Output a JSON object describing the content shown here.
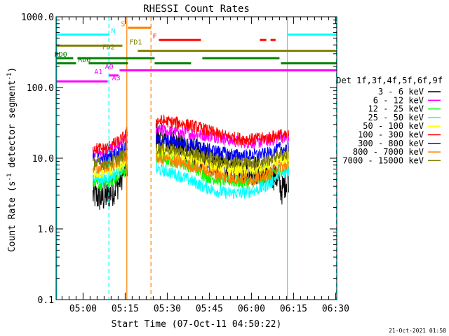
{
  "chart_data": {
    "type": "line",
    "title": "RHESSI Count Rates",
    "xlabel": "Start Time (07-Oct-11 04:50:22)",
    "ylabel_prefix": "Count Rate (s",
    "ylabel_exp": "-1",
    "ylabel_mid": " detector segment",
    "ylabel_exp2": "-1",
    "ylabel_suffix": ")",
    "y_scale": "log",
    "xlim": [
      50.4,
      150.4
    ],
    "ylim": [
      0.1,
      1000
    ],
    "x_ticks": [
      {
        "v": 60,
        "label": "05:00"
      },
      {
        "v": 75,
        "label": "05:15"
      },
      {
        "v": 90,
        "label": "05:30"
      },
      {
        "v": 105,
        "label": "05:45"
      },
      {
        "v": 120,
        "label": "06:00"
      },
      {
        "v": 135,
        "label": "06:15"
      },
      {
        "v": 150,
        "label": "06:30"
      }
    ],
    "y_ticks": [
      {
        "v": 0.1,
        "label": "0.1"
      },
      {
        "v": 1,
        "label": "1.0"
      },
      {
        "v": 10,
        "label": "10.0"
      },
      {
        "v": 100,
        "label": "100.0"
      },
      {
        "v": 1000,
        "label": "1000.0"
      }
    ],
    "legend": {
      "title": "Det 1f,3f,4f,5f,6f,9f",
      "placement": "right"
    },
    "series": [
      {
        "name": "3 - 6 keV",
        "color": "#000000",
        "x": [
          63.5,
          66.5,
          68.5,
          70.5,
          72.5,
          74,
          75,
          75.8,
          86,
          90,
          95,
          100,
          104,
          108,
          112,
          116,
          120,
          124,
          127,
          129,
          130,
          131,
          132,
          133.4
        ],
        "y": [
          3.0,
          2.7,
          2.9,
          3.4,
          4.3,
          6.0,
          7.5,
          8.5,
          20,
          18,
          15,
          12,
          10,
          8.5,
          7.5,
          7.0,
          6.8,
          6.5,
          6.0,
          5.5,
          4.0,
          3.5,
          4.5,
          5.5
        ]
      },
      {
        "name": "6 - 12 keV",
        "color": "#ff00ff",
        "x": [
          63.5,
          66.5,
          68.5,
          70.5,
          72.5,
          74,
          75,
          75.8,
          86,
          90,
          95,
          100,
          104,
          108,
          112,
          116,
          120,
          124,
          127,
          129,
          130,
          131,
          132,
          133.4
        ],
        "y": [
          12.5,
          12.0,
          12.5,
          14,
          15,
          16,
          18,
          20,
          25,
          24,
          23,
          22,
          21,
          20,
          18,
          17,
          16.5,
          17,
          18,
          19,
          22,
          20,
          18,
          19
        ]
      },
      {
        "name": "12 - 25 keV",
        "color": "#00ff00",
        "x": [
          63.5,
          66.5,
          68.5,
          70.5,
          72.5,
          74,
          75,
          75.8,
          86,
          90,
          95,
          100,
          104,
          108,
          112,
          116,
          120,
          124,
          127,
          129,
          130,
          131,
          132,
          133.4
        ],
        "y": [
          4.5,
          4.3,
          4.6,
          5.0,
          5.5,
          6.0,
          6.5,
          7.2,
          10,
          9.5,
          8.5,
          7.0,
          5.5,
          5.0,
          4.8,
          4.6,
          4.6,
          4.8,
          5.5,
          6.5,
          7.0,
          6.5,
          6.5,
          7.5
        ]
      },
      {
        "name": "25 - 50 keV",
        "color": "#00ffff",
        "x": [
          63.5,
          66.5,
          68.5,
          70.5,
          72.5,
          74,
          75,
          75.8,
          86,
          90,
          95,
          100,
          104,
          108,
          112,
          116,
          120,
          124,
          127,
          129,
          130,
          131,
          132,
          133.4
        ],
        "y": [
          5.5,
          5.0,
          5.3,
          5.8,
          6.5,
          7.2,
          8.0,
          9.0,
          7.0,
          6.5,
          5.5,
          4.5,
          3.8,
          3.4,
          3.2,
          3.2,
          3.4,
          3.8,
          4.5,
          5.5,
          6.5,
          6.0,
          6.0,
          7.0
        ]
      },
      {
        "name": "50 - 100 keV",
        "color": "#ffff00",
        "x": [
          63.5,
          66.5,
          68.5,
          70.5,
          72.5,
          74,
          75,
          75.8,
          86,
          90,
          95,
          100,
          104,
          108,
          112,
          116,
          120,
          124,
          127,
          129,
          130,
          131,
          132,
          133.4
        ],
        "y": [
          6.5,
          6.2,
          6.5,
          7.0,
          7.6,
          8.2,
          9.0,
          10.0,
          12,
          11.5,
          10.5,
          9.5,
          8.2,
          7.5,
          7.0,
          6.8,
          6.8,
          7.0,
          7.6,
          8.5,
          9.5,
          9.0,
          9.0,
          10.0
        ]
      },
      {
        "name": "100 - 300 keV",
        "color": "#ff0000",
        "x": [
          63.5,
          66.5,
          68.5,
          70.5,
          72.5,
          74,
          75,
          75.8,
          86,
          90,
          95,
          100,
          104,
          108,
          112,
          116,
          120,
          124,
          127,
          129,
          130,
          131,
          132,
          133.4
        ],
        "y": [
          14,
          13.5,
          14,
          15.5,
          17,
          19,
          21,
          24,
          34,
          33,
          31,
          28,
          25,
          22,
          20,
          19,
          18.5,
          19,
          20,
          21,
          22,
          21,
          20,
          21
        ]
      },
      {
        "name": "300 - 800 keV",
        "color": "#0000ff",
        "x": [
          63.5,
          66.5,
          68.5,
          70.5,
          72.5,
          74,
          75,
          75.8,
          86,
          90,
          95,
          100,
          104,
          108,
          112,
          116,
          120,
          124,
          127,
          129,
          130,
          131,
          132,
          133.4
        ],
        "y": [
          10,
          9.6,
          10,
          11,
          12,
          13,
          14.5,
          16,
          18,
          17.5,
          16.5,
          15,
          13.5,
          12.5,
          11.5,
          11,
          11,
          11.3,
          12,
          13,
          14,
          13.5,
          13.5,
          14.5
        ]
      },
      {
        "name": "800 - 7000 keV",
        "color": "#ff8000",
        "x": [
          63.5,
          66.5,
          68.5,
          70.5,
          72.5,
          74,
          75,
          75.8,
          86,
          90,
          95,
          100,
          104,
          108,
          112,
          116,
          120,
          124,
          127,
          129,
          130,
          131,
          132,
          133.4
        ],
        "y": [
          7.5,
          7.2,
          7.5,
          8.0,
          8.8,
          9.6,
          10.5,
          11.5,
          10,
          9.5,
          8.5,
          7.5,
          6.5,
          5.8,
          5.3,
          5.1,
          5.1,
          5.4,
          6.2,
          7.2,
          8.0,
          7.6,
          7.6,
          8.5
        ]
      },
      {
        "name": "7000 - 15000 keV",
        "color": "#808000",
        "x": [
          63.5,
          66.5,
          68.5,
          70.5,
          72.5,
          74,
          75,
          75.8,
          86,
          90,
          95,
          100,
          104,
          108,
          112,
          116,
          120,
          124,
          127,
          129,
          130,
          131,
          132,
          133.4
        ],
        "y": [
          8.5,
          8.2,
          8.5,
          9.2,
          10,
          11,
          12,
          13,
          14,
          13.5,
          12.5,
          11.5,
          10.2,
          9.5,
          9.0,
          8.7,
          8.7,
          9.0,
          9.8,
          10.8,
          11.5,
          11,
          11,
          12
        ]
      }
    ],
    "vertical_lines": [
      {
        "x": 50.6,
        "color": "#00ffff",
        "style": "solid"
      },
      {
        "x": 69.2,
        "color": "#00ffff",
        "style": "dashed"
      },
      {
        "x": 75.6,
        "color": "#ff8000",
        "style": "solid"
      },
      {
        "x": 84.2,
        "color": "#ff8000",
        "style": "dashed"
      },
      {
        "x": 132.8,
        "color": "#00ffff",
        "style": "solid"
      },
      {
        "x": 150.3,
        "color": "#00ffff",
        "style": "dashed"
      }
    ],
    "flag_bars": [
      {
        "label": "N",
        "color": "#00ffff",
        "y": 560,
        "segments": [
          [
            50.6,
            69.2
          ],
          [
            132.8,
            150.3
          ]
        ],
        "label_x": 70
      },
      {
        "label": "S",
        "color": "#ff8000",
        "y": 700,
        "segments": [
          [
            76.0,
            84.2
          ]
        ],
        "label_x": 73.5
      },
      {
        "label": "F",
        "color": "#ff0000",
        "y": 470,
        "segments": [
          [
            87.0,
            102.0
          ],
          [
            123.0,
            125.3
          ],
          [
            126.8,
            128.6
          ]
        ],
        "label_x": 84.8
      },
      {
        "label": "FD1",
        "color": "#808000",
        "y": 390,
        "segments": [
          [
            50.6,
            74.0
          ]
        ],
        "label_x": 76.5
      },
      {
        "label": "FD2",
        "color": "#808000",
        "y": 330,
        "segments": [
          [
            79.5,
            150.3
          ]
        ],
        "label_x": 66.8
      },
      {
        "label": "RD0",
        "color": "#008000",
        "y": 260,
        "segments": [
          [
            50.6,
            56.5
          ],
          [
            58.0,
            85.5
          ],
          [
            102.5,
            130.0
          ]
        ],
        "label_x": 49.8
      },
      {
        "label": "RD6",
        "color": "#008000",
        "y": 220,
        "segments": [
          [
            50.6,
            57.5
          ],
          [
            62.0,
            76.0
          ],
          [
            85.5,
            98.5
          ],
          [
            130.5,
            150.3
          ]
        ],
        "label_x": 58.2
      },
      {
        "label": "A0",
        "color": "#ff00ff",
        "y": 175,
        "segments": [
          [
            73.0,
            150.3
          ]
        ],
        "label_x": 67.8
      },
      {
        "label": "A1",
        "color": "#ff00ff",
        "y": 148,
        "segments": [
          [
            69.3,
            72.6
          ]
        ],
        "label_x": 64.0
      },
      {
        "label": "A3",
        "color": "#ff00ff",
        "y": 122,
        "segments": [
          [
            50.6,
            68.8
          ]
        ],
        "label_x": 70.3
      }
    ],
    "footer_date": "21-Oct-2021 01:58"
  }
}
